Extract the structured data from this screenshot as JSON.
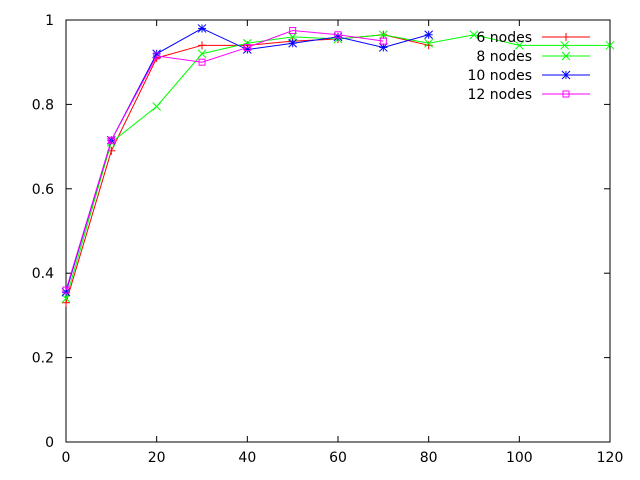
{
  "chart_data": {
    "type": "line",
    "title": "",
    "xlabel": "",
    "ylabel": "",
    "xlim": [
      0,
      120
    ],
    "ylim": [
      0,
      1
    ],
    "grid": false,
    "legend_position": "top-right",
    "x_ticks": [
      "0",
      "20",
      "40",
      "60",
      "80",
      "100",
      "120"
    ],
    "y_ticks": [
      "0",
      "0.2",
      "0.4",
      "0.6",
      "0.8",
      "1"
    ],
    "x_tick_values": [
      0,
      20,
      40,
      60,
      80,
      100,
      120
    ],
    "y_tick_values": [
      0,
      0.2,
      0.4,
      0.6,
      0.8,
      1
    ],
    "series": [
      {
        "name": "6 nodes",
        "color": "#ff0000",
        "marker": "plus",
        "x": [
          0,
          10,
          20,
          30,
          40,
          50,
          60,
          70,
          80
        ],
        "y": [
          0.33,
          0.69,
          0.91,
          0.94,
          0.94,
          0.95,
          0.955,
          0.965,
          0.94
        ]
      },
      {
        "name": "8 nodes",
        "color": "#00ff00",
        "marker": "cross",
        "x": [
          0,
          10,
          20,
          30,
          40,
          50,
          60,
          70,
          80,
          90,
          100,
          110,
          120
        ],
        "y": [
          0.34,
          0.71,
          0.795,
          0.92,
          0.945,
          0.96,
          0.955,
          0.965,
          0.945,
          0.965,
          0.94,
          0.94,
          0.94
        ]
      },
      {
        "name": "10 nodes",
        "color": "#0000ff",
        "marker": "star",
        "x": [
          0,
          10,
          20,
          30,
          40,
          50,
          60,
          70,
          80
        ],
        "y": [
          0.355,
          0.715,
          0.92,
          0.98,
          0.93,
          0.945,
          0.96,
          0.935,
          0.965
        ]
      },
      {
        "name": "12 nodes",
        "color": "#ff00ff",
        "marker": "square",
        "x": [
          0,
          10,
          20,
          30,
          40,
          50,
          60,
          70
        ],
        "y": [
          0.36,
          0.715,
          0.915,
          0.9,
          0.935,
          0.975,
          0.965,
          0.95
        ]
      }
    ]
  }
}
